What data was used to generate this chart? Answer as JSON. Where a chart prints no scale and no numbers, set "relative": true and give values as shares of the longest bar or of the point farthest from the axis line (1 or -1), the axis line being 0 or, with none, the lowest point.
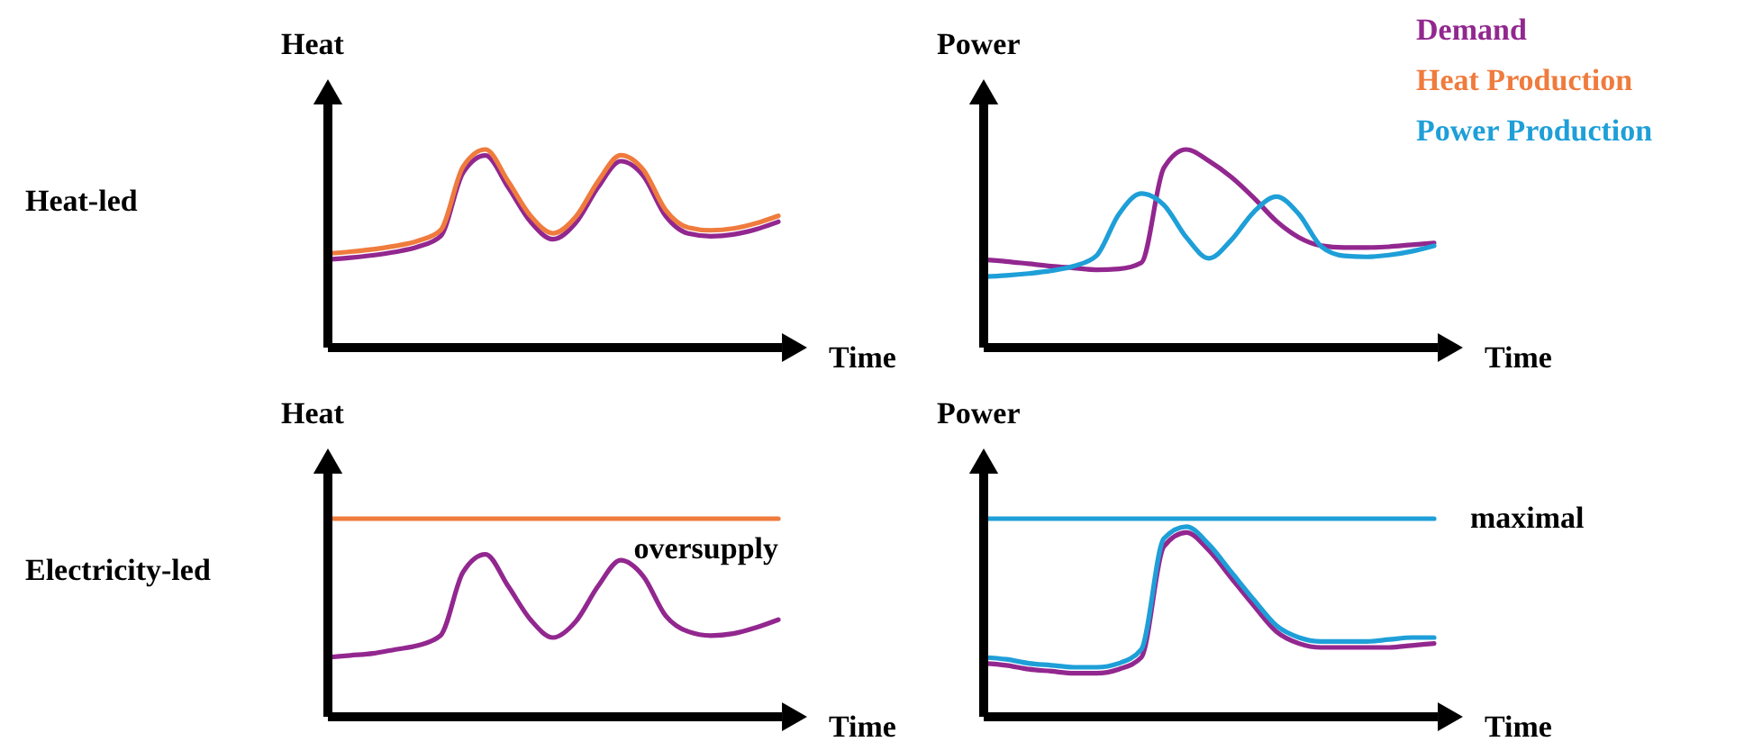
{
  "chart_data": [
    {
      "type": "other",
      "title": "Heat-led"
    },
    {
      "type": "line",
      "relative": true,
      "legend": false,
      "ylabel": "Heat",
      "xlabel": "Time",
      "categories": [
        null,
        null,
        null,
        null,
        null,
        null,
        null,
        null,
        null,
        null,
        null,
        null,
        null,
        null,
        null,
        null,
        null,
        null,
        null,
        null,
        null
      ],
      "series": [
        {
          "color": "#92278f",
          "values": [
            0.445,
            0.454,
            0.466,
            0.483,
            0.509,
            0.562,
            0.883,
            0.97,
            0.81,
            0.635,
            0.547,
            0.629,
            0.81,
            0.941,
            0.868,
            0.664,
            0.576,
            0.562,
            0.571,
            0.597,
            0.635
          ]
        },
        {
          "name": "Heat Production",
          "color": "#ef7b3d",
          "values": [
            0.475,
            0.484,
            0.496,
            0.513,
            0.539,
            0.592,
            0.913,
            1.0,
            0.84,
            0.665,
            0.577,
            0.659,
            0.84,
            0.971,
            0.898,
            0.694,
            0.606,
            0.592,
            0.601,
            0.627,
            0.665
          ]
        }
      ]
    },
    {
      "type": "line",
      "relative": true,
      "legend": "top right",
      "ylabel": "Power",
      "xlabel": "Time",
      "categories": [
        null,
        null,
        null,
        null,
        null,
        null,
        null,
        null,
        null,
        null,
        null,
        null,
        null,
        null,
        null,
        null,
        null,
        null,
        null,
        null,
        null
      ],
      "series": [
        {
          "name": "Demand",
          "color": "#92278f",
          "values": [
            0.444,
            0.435,
            0.423,
            0.411,
            0.402,
            0.393,
            0.397,
            0.428,
            0.907,
            1.0,
            0.942,
            0.86,
            0.755,
            0.638,
            0.556,
            0.514,
            0.505,
            0.505,
            0.509,
            0.519,
            0.528
          ]
        },
        {
          "name": "Power Production",
          "color": "#1e9fd8",
          "values": [
            0.357,
            0.364,
            0.374,
            0.388,
            0.411,
            0.463,
            0.673,
            0.778,
            0.72,
            0.556,
            0.451,
            0.544,
            0.685,
            0.762,
            0.673,
            0.509,
            0.463,
            0.458,
            0.467,
            0.486,
            0.514
          ]
        }
      ]
    },
    {
      "type": "other",
      "title": "Electricity-led"
    },
    {
      "type": "line",
      "relative": true,
      "legend": false,
      "ylabel": "Heat",
      "xlabel": "Time",
      "categories": [
        null,
        null,
        null,
        null,
        null,
        null,
        null,
        null,
        null,
        null,
        null,
        null,
        null,
        null,
        null,
        null,
        null,
        null,
        null,
        null,
        null
      ],
      "annotations": [
        "oversupply"
      ],
      "series": [
        {
          "color": "#92278f",
          "values": [
            0.3,
            0.31,
            0.32,
            0.34,
            0.36,
            0.41,
            0.73,
            0.82,
            0.66,
            0.49,
            0.4,
            0.48,
            0.66,
            0.79,
            0.71,
            0.51,
            0.43,
            0.41,
            0.42,
            0.45,
            0.49
          ]
        },
        {
          "color": "#ef7b3d",
          "values": [
            1,
            1,
            1,
            1,
            1,
            1,
            1,
            1,
            1,
            1,
            1,
            1,
            1,
            1,
            1,
            1,
            1,
            1,
            1,
            1,
            1
          ]
        }
      ]
    },
    {
      "type": "line",
      "relative": true,
      "legend": false,
      "ylabel": "Power",
      "xlabel": "Time",
      "categories": [
        null,
        null,
        null,
        null,
        null,
        null,
        null,
        null,
        null,
        null,
        null,
        null,
        null,
        null,
        null,
        null,
        null,
        null,
        null,
        null,
        null
      ],
      "annotations": [
        "maximal"
      ],
      "series": [
        {
          "color": "#92278f",
          "values": [
            0.27,
            0.26,
            0.24,
            0.23,
            0.22,
            0.22,
            0.24,
            0.3,
            0.86,
            0.93,
            0.84,
            0.7,
            0.56,
            0.43,
            0.37,
            0.35,
            0.35,
            0.35,
            0.35,
            0.36,
            0.37
          ]
        },
        {
          "color": "#1e9fd8",
          "values": [
            0.3,
            0.29,
            0.27,
            0.26,
            0.25,
            0.25,
            0.27,
            0.34,
            0.9,
            0.96,
            0.87,
            0.73,
            0.59,
            0.46,
            0.4,
            0.38,
            0.38,
            0.38,
            0.39,
            0.4,
            0.4
          ]
        },
        {
          "color": "#1e9fd8",
          "values": [
            1,
            1,
            1,
            1,
            1,
            1,
            1,
            1,
            1,
            1,
            1,
            1,
            1,
            1,
            1,
            1,
            1,
            1,
            1,
            1,
            1
          ]
        }
      ]
    }
  ]
}
